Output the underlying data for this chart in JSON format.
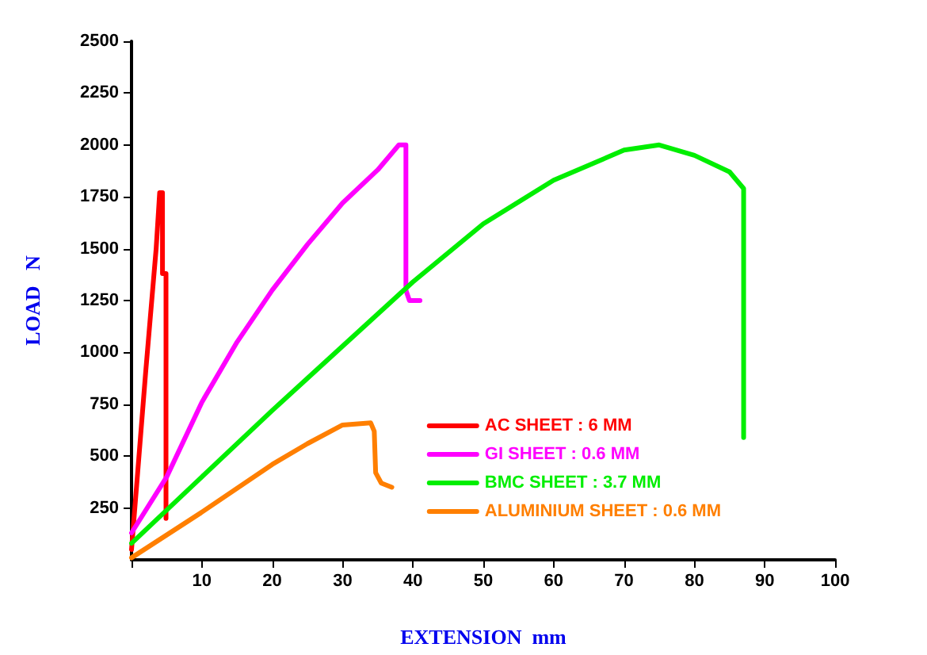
{
  "chart_data": {
    "type": "line",
    "xlabel": "EXTENSION  mm",
    "ylabel": "LOAD   N",
    "xlim": [
      0,
      100
    ],
    "xticks": [
      {
        "value": 0,
        "label": null
      },
      10,
      20,
      30,
      40,
      50,
      60,
      70,
      80,
      90,
      100
    ],
    "ylim": [
      0,
      2500
    ],
    "yticks": [
      250,
      500,
      750,
      1000,
      1250,
      1500,
      1750,
      2000,
      2250,
      2500
    ],
    "grid": false,
    "legend": "bottom right",
    "marker": "none",
    "line_style": "solid",
    "series": [
      {
        "name": "AC SHEET : 6 MM",
        "color": "#ff0000",
        "x": [
          0,
          2,
          3.5,
          4,
          4.4,
          4.4,
          4.9,
          4.9,
          5
        ],
        "values": [
          50,
          900,
          1500,
          1770,
          1770,
          1380,
          1380,
          200,
          200
        ]
      },
      {
        "name": "GI SHEET : 0.6 MM",
        "color": "#ff00ff",
        "x": [
          0,
          5,
          10,
          15,
          20,
          25,
          30,
          35,
          38,
          39,
          39,
          39.5,
          41
        ],
        "values": [
          130,
          400,
          760,
          1050,
          1300,
          1520,
          1720,
          1880,
          2000,
          2000,
          1300,
          1250,
          1250
        ]
      },
      {
        "name": "BMC SHEET : 3.7 MM",
        "color": "#00ee00",
        "x": [
          0,
          10,
          20,
          30,
          40,
          50,
          60,
          70,
          75,
          80,
          85,
          87,
          87
        ],
        "values": [
          80,
          400,
          720,
          1030,
          1340,
          1620,
          1830,
          1975,
          2000,
          1950,
          1870,
          1790,
          590
        ]
      },
      {
        "name": "ALUMINIUM SHEET : 0.6 MM",
        "color": "#ff7f00",
        "x": [
          0,
          10,
          20,
          25,
          30,
          34,
          34.5,
          34.7,
          35.5,
          37
        ],
        "values": [
          10,
          230,
          460,
          560,
          650,
          660,
          620,
          420,
          370,
          350
        ]
      }
    ]
  }
}
